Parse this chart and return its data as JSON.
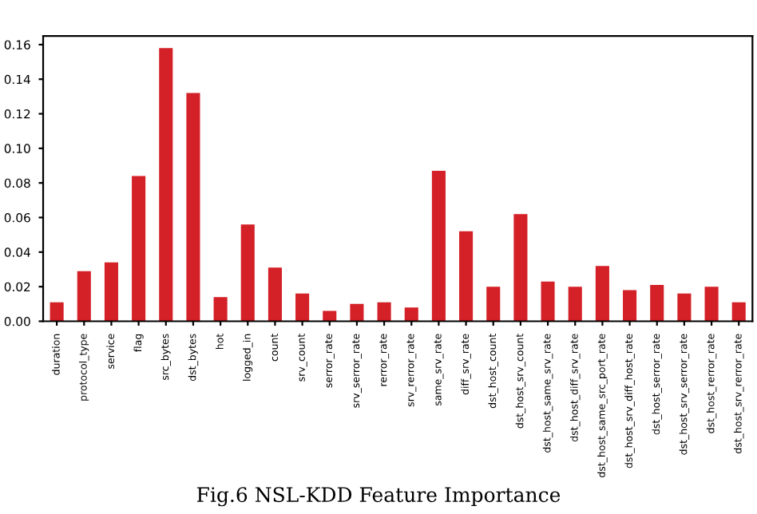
{
  "chart_data": {
    "type": "bar",
    "categories": [
      "duration",
      "protocol_type",
      "service",
      "flag",
      "src_bytes",
      "dst_bytes",
      "hot",
      "logged_in",
      "count",
      "srv_count",
      "serror_rate",
      "srv_serror_rate",
      "rerror_rate",
      "srv_rerror_rate",
      "same_srv_rate",
      "diff_srv_rate",
      "dst_host_count",
      "dst_host_srv_count",
      "dst_host_same_srv_rate",
      "dst_host_diff_srv_rate",
      "dst_host_same_src_port_rate",
      "dst_host_srv_diff_host_rate",
      "dst_host_serror_rate",
      "dst_host_srv_serror_rate",
      "dst_host_rerror_rate",
      "dst_host_srv_rerror_rate"
    ],
    "values": [
      0.011,
      0.029,
      0.034,
      0.084,
      0.158,
      0.132,
      0.014,
      0.056,
      0.031,
      0.016,
      0.006,
      0.01,
      0.011,
      0.008,
      0.087,
      0.052,
      0.02,
      0.062,
      0.023,
      0.02,
      0.032,
      0.018,
      0.021,
      0.016,
      0.02,
      0.011
    ],
    "color": "#d42027",
    "ylim": [
      0,
      0.165
    ],
    "yticks": [
      {
        "value": 0,
        "label": "0.00"
      },
      {
        "value": 0.02,
        "label": "0.02"
      },
      {
        "value": 0.04,
        "label": "0.04"
      },
      {
        "value": 0.06,
        "label": "0.06"
      },
      {
        "value": 0.08,
        "label": "0.08"
      },
      {
        "value": 0.1,
        "label": "0.10"
      },
      {
        "value": 0.12,
        "label": "0.12"
      },
      {
        "value": 0.14,
        "label": "0.14"
      },
      {
        "value": 0.16,
        "label": "0.16"
      }
    ],
    "grid": false,
    "annotations": [
      "Fig.6 NSL-KDD Feature Importance"
    ]
  }
}
